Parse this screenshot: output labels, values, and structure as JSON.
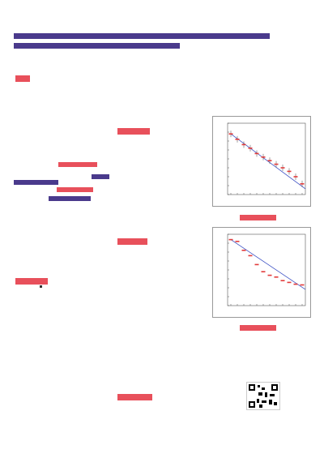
{
  "poster": {
    "accent_red": "#e8505b",
    "accent_purple": "#4a3a8c"
  },
  "chart_data": [
    {
      "type": "scatter",
      "ylim": [
        -0.6,
        1.4
      ],
      "series": [
        {
          "values": [
            1.1,
            0.95,
            0.8,
            0.7,
            0.55,
            0.45,
            0.35,
            0.25,
            0.15,
            0.05,
            -0.1,
            -0.3
          ]
        }
      ]
    },
    {
      "type": "scatter",
      "ylim": [
        -0.6,
        1.4
      ],
      "series": [
        {
          "values": [
            1.25,
            1.2,
            0.95,
            0.8,
            0.55,
            0.35,
            0.25,
            0.2,
            0.1,
            0.05,
            0.0,
            -0.02
          ]
        }
      ]
    }
  ]
}
